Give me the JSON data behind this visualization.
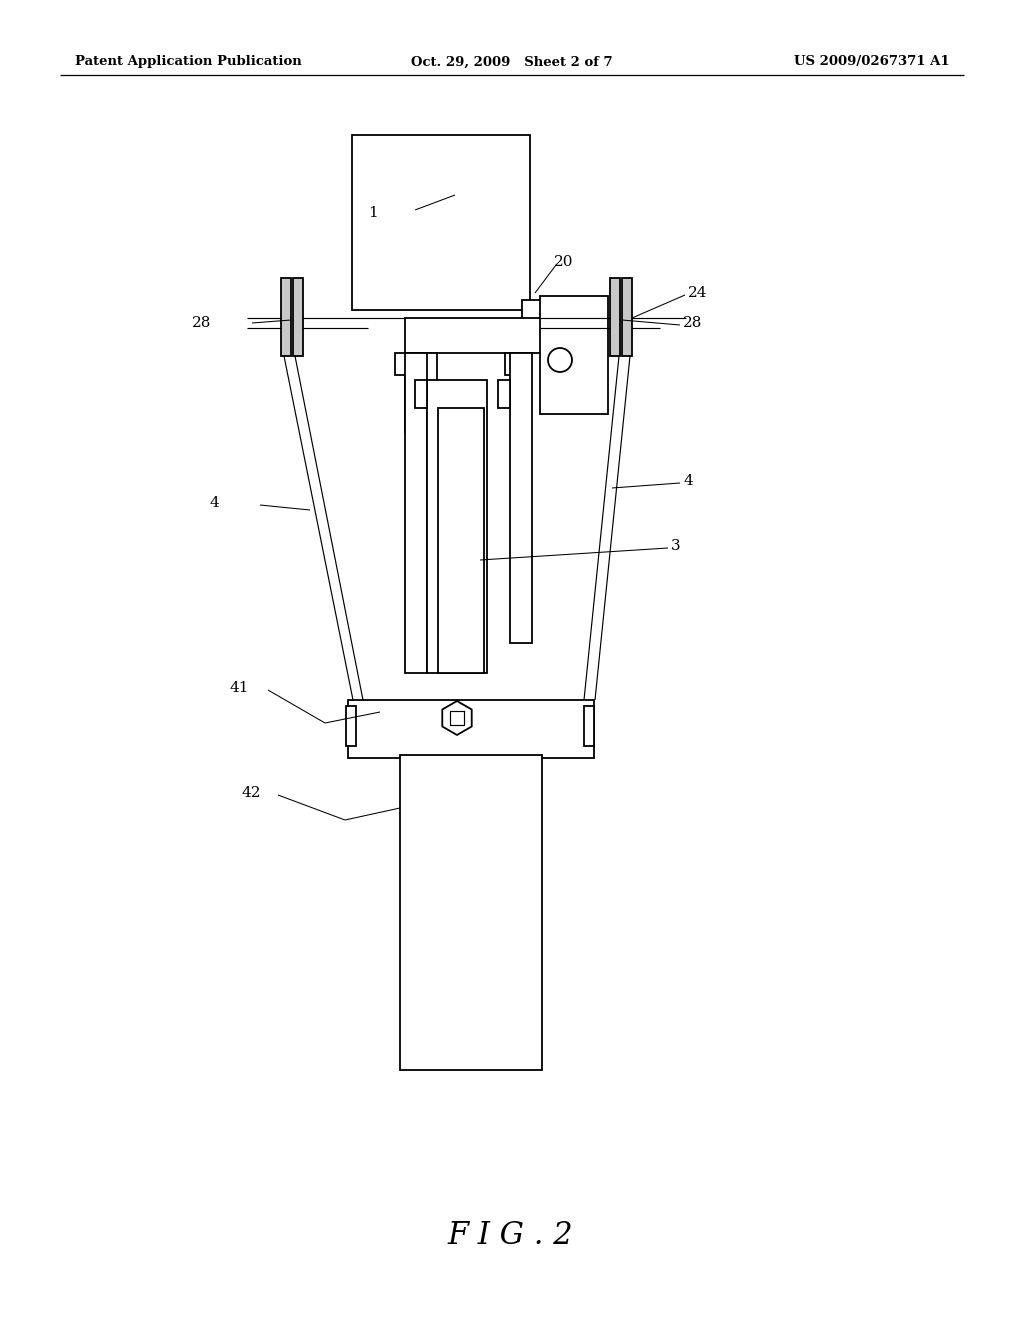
{
  "bg_color": "#ffffff",
  "header_left": "Patent Application Publication",
  "header_mid": "Oct. 29, 2009   Sheet 2 of 7",
  "header_right": "US 2009/0267371 A1",
  "figure_label": "F I G . 2",
  "lw_main": 1.3,
  "lw_thin": 0.85,
  "lw_leader": 0.75,
  "label_fontsize": 11,
  "header_fontsize": 9.5
}
